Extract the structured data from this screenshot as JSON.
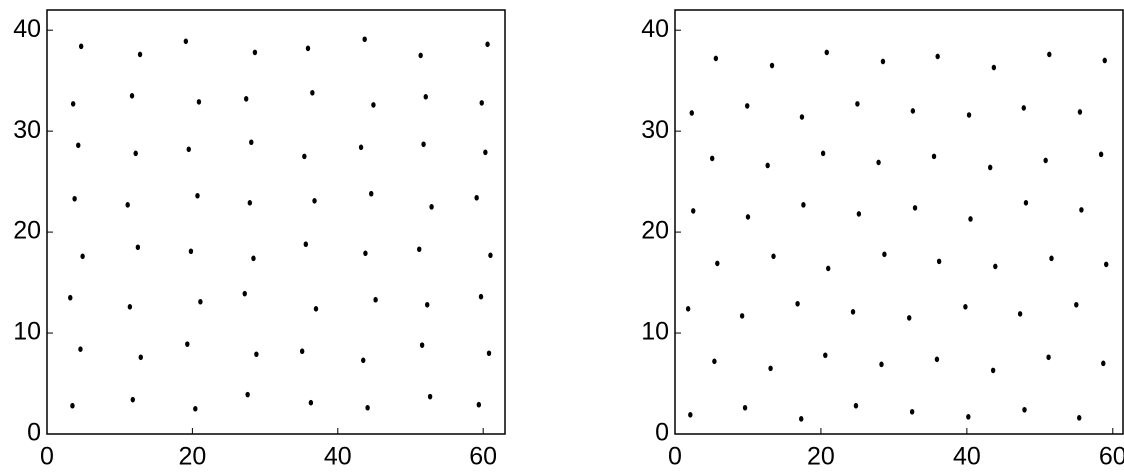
{
  "chart_data": [
    {
      "type": "scatter",
      "color": "#000000",
      "x": [
        3.5,
        11.8,
        20.4,
        27.6,
        36.3,
        44.1,
        52.7,
        59.4,
        4.6,
        12.9,
        19.3,
        28.8,
        35.1,
        43.5,
        51.6,
        60.8,
        3.2,
        11.4,
        21.1,
        27.2,
        37.0,
        45.2,
        52.3,
        59.7,
        4.9,
        12.5,
        19.8,
        28.4,
        35.6,
        43.8,
        51.2,
        61.0,
        3.8,
        11.1,
        20.7,
        27.9,
        36.8,
        44.6,
        52.9,
        59.1,
        4.3,
        12.2,
        19.5,
        28.1,
        35.4,
        43.2,
        51.8,
        60.3,
        3.6,
        11.7,
        20.9,
        27.4,
        36.5,
        44.9,
        52.1,
        59.8,
        4.7,
        12.8,
        19.1,
        28.6,
        35.9,
        43.7,
        51.4,
        60.6
      ],
      "y": [
        2.8,
        3.4,
        2.5,
        3.9,
        3.1,
        2.6,
        3.7,
        2.9,
        8.4,
        7.6,
        8.9,
        7.9,
        8.2,
        7.3,
        8.8,
        8.0,
        13.5,
        12.6,
        13.1,
        13.9,
        12.4,
        13.3,
        12.8,
        13.6,
        17.6,
        18.5,
        18.1,
        17.4,
        18.8,
        17.9,
        18.3,
        17.7,
        23.3,
        22.7,
        23.6,
        22.9,
        23.1,
        23.8,
        22.5,
        23.4,
        28.6,
        27.8,
        28.2,
        28.9,
        27.5,
        28.4,
        28.7,
        27.9,
        32.7,
        33.5,
        32.9,
        33.2,
        33.8,
        32.6,
        33.4,
        32.8,
        38.4,
        37.6,
        38.9,
        37.8,
        38.2,
        39.1,
        37.5,
        38.6
      ],
      "xlim": [
        0,
        63
      ],
      "ylim": [
        0,
        42
      ],
      "xticks": [
        0,
        20,
        40,
        60
      ],
      "yticks": [
        0,
        10,
        20,
        30,
        40
      ]
    },
    {
      "type": "scatter",
      "color": "#000000",
      "x": [
        2.1,
        9.6,
        17.3,
        24.8,
        32.5,
        40.2,
        47.9,
        55.4,
        5.4,
        13.1,
        20.6,
        28.3,
        35.9,
        43.6,
        51.2,
        58.7,
        1.8,
        9.2,
        16.8,
        24.4,
        32.1,
        39.8,
        47.3,
        55.0,
        5.8,
        13.5,
        21.0,
        28.7,
        36.2,
        43.9,
        51.6,
        59.1,
        2.5,
        10.0,
        17.6,
        25.2,
        32.9,
        40.5,
        48.1,
        55.7,
        5.1,
        12.7,
        20.3,
        27.9,
        35.5,
        43.2,
        50.8,
        58.4,
        2.3,
        9.9,
        17.4,
        25.0,
        32.6,
        40.3,
        47.8,
        55.5,
        5.6,
        13.3,
        20.8,
        28.5,
        36.0,
        43.7,
        51.3,
        58.9
      ],
      "y": [
        1.9,
        2.6,
        1.5,
        2.8,
        2.2,
        1.7,
        2.4,
        1.6,
        7.2,
        6.5,
        7.8,
        6.9,
        7.4,
        6.3,
        7.6,
        7.0,
        12.4,
        11.7,
        12.9,
        12.1,
        11.5,
        12.6,
        11.9,
        12.8,
        16.9,
        17.6,
        16.4,
        17.8,
        17.1,
        16.6,
        17.4,
        16.8,
        22.1,
        21.5,
        22.7,
        21.8,
        22.4,
        21.3,
        22.9,
        22.2,
        27.3,
        26.6,
        27.8,
        26.9,
        27.5,
        26.4,
        27.1,
        27.7,
        31.8,
        32.5,
        31.4,
        32.7,
        32.0,
        31.6,
        32.3,
        31.9,
        37.2,
        36.5,
        37.8,
        36.9,
        37.4,
        36.3,
        37.6,
        37.0
      ],
      "xlim": [
        0,
        61.4
      ],
      "ylim": [
        0,
        42
      ],
      "xticks": [
        0,
        20,
        40,
        60
      ],
      "yticks": [
        0,
        10,
        20,
        30,
        40
      ]
    }
  ]
}
